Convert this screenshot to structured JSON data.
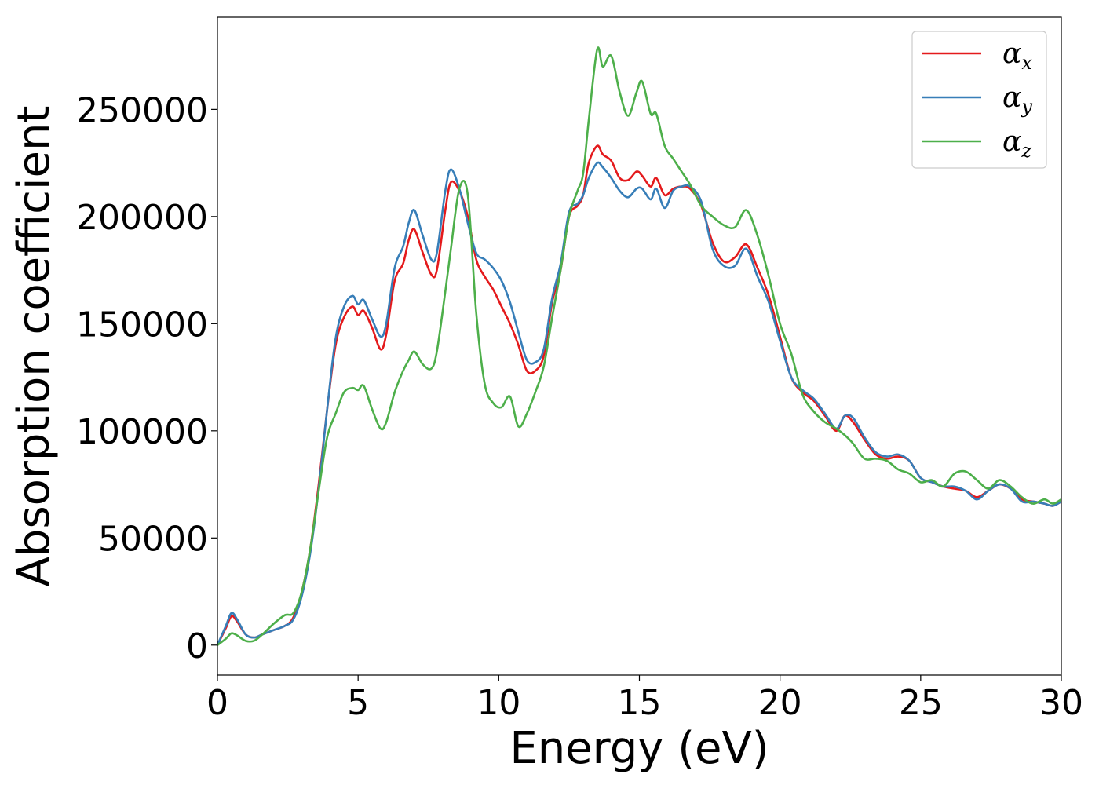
{
  "chart_data": {
    "type": "line",
    "title": "",
    "xlabel": "Energy (eV)",
    "ylabel": "Absorption coefficient",
    "xlim": [
      0,
      30
    ],
    "ylim": [
      -14000,
      293000
    ],
    "xticks": [
      0,
      5,
      10,
      15,
      20,
      25,
      30
    ],
    "xtick_labels": [
      "0",
      "5",
      "10",
      "15",
      "20",
      "25",
      "30"
    ],
    "yticks": [
      0,
      50000,
      100000,
      150000,
      200000,
      250000
    ],
    "ytick_labels": [
      "0",
      "50000",
      "100000",
      "150000",
      "200000",
      "250000"
    ],
    "grid": false,
    "legend_position": "top-right",
    "series": [
      {
        "name": "α_x",
        "label_base": "α",
        "label_sub": "x",
        "color": "#e41a1c",
        "x": [
          0,
          0.3,
          0.5,
          0.7,
          1.0,
          1.3,
          1.6,
          2.0,
          2.4,
          2.7,
          3.0,
          3.3,
          3.6,
          3.9,
          4.2,
          4.5,
          4.8,
          5.0,
          5.2,
          5.5,
          5.8,
          6.0,
          6.3,
          6.6,
          6.8,
          7.0,
          7.3,
          7.6,
          7.8,
          8.1,
          8.3,
          8.6,
          8.9,
          9.2,
          9.5,
          9.8,
          10.1,
          10.4,
          10.7,
          11.0,
          11.3,
          11.6,
          11.9,
          12.2,
          12.5,
          12.8,
          13.0,
          13.2,
          13.5,
          13.7,
          14.0,
          14.3,
          14.6,
          14.9,
          15.1,
          15.4,
          15.6,
          15.9,
          16.2,
          16.5,
          16.8,
          17.2,
          17.6,
          18.0,
          18.4,
          18.8,
          19.2,
          19.6,
          20.0,
          20.4,
          20.8,
          21.2,
          21.6,
          22.0,
          22.3,
          22.6,
          23.0,
          23.4,
          23.8,
          24.2,
          24.6,
          25.0,
          25.4,
          25.8,
          26.2,
          26.6,
          27.0,
          27.4,
          27.8,
          28.2,
          28.6,
          29.0,
          29.4,
          29.7,
          30.0
        ],
        "values": [
          0,
          8000,
          13500,
          11000,
          5000,
          3500,
          5000,
          7000,
          9000,
          13000,
          25000,
          45000,
          75000,
          110000,
          140000,
          153000,
          158000,
          154000,
          156000,
          148000,
          138000,
          145000,
          170000,
          178000,
          189000,
          194000,
          183000,
          173000,
          175000,
          203000,
          216000,
          212000,
          200000,
          180000,
          172000,
          166000,
          158000,
          150000,
          140000,
          128000,
          128000,
          135000,
          160000,
          175000,
          200000,
          205000,
          210000,
          225000,
          233000,
          229000,
          226000,
          218000,
          217000,
          221000,
          219000,
          214000,
          218000,
          210000,
          213000,
          214000,
          213000,
          205000,
          188000,
          179000,
          181000,
          187000,
          176000,
          163000,
          144000,
          125000,
          118000,
          114000,
          107000,
          100000,
          107000,
          104000,
          96000,
          89000,
          87000,
          88000,
          86000,
          78000,
          76000,
          74000,
          73000,
          72000,
          69000,
          72000,
          75000,
          73000,
          68000,
          67000,
          66000,
          65000,
          67000
        ]
      },
      {
        "name": "α_y",
        "label_base": "α",
        "label_sub": "y",
        "color": "#377eb8",
        "x": [
          0,
          0.3,
          0.5,
          0.7,
          1.0,
          1.3,
          1.6,
          2.0,
          2.4,
          2.7,
          3.0,
          3.3,
          3.6,
          3.9,
          4.2,
          4.5,
          4.8,
          5.0,
          5.2,
          5.5,
          5.8,
          6.0,
          6.3,
          6.6,
          6.8,
          7.0,
          7.3,
          7.6,
          7.8,
          8.1,
          8.3,
          8.6,
          8.9,
          9.2,
          9.5,
          9.8,
          10.1,
          10.4,
          10.7,
          11.0,
          11.3,
          11.6,
          11.9,
          12.2,
          12.5,
          12.8,
          13.0,
          13.2,
          13.5,
          13.7,
          14.0,
          14.3,
          14.6,
          14.9,
          15.1,
          15.4,
          15.6,
          15.9,
          16.2,
          16.5,
          16.8,
          17.2,
          17.6,
          18.0,
          18.4,
          18.8,
          19.2,
          19.6,
          20.0,
          20.4,
          20.8,
          21.2,
          21.6,
          22.0,
          22.3,
          22.6,
          23.0,
          23.4,
          23.8,
          24.2,
          24.6,
          25.0,
          25.4,
          25.8,
          26.2,
          26.6,
          27.0,
          27.4,
          27.8,
          28.2,
          28.6,
          29.0,
          29.4,
          29.7,
          30.0
        ],
        "values": [
          0,
          9000,
          15000,
          12000,
          5000,
          3500,
          5000,
          7000,
          9000,
          12000,
          23000,
          43000,
          73000,
          110000,
          143000,
          158000,
          163000,
          159000,
          161000,
          152000,
          144000,
          150000,
          176000,
          186000,
          197000,
          203000,
          191000,
          180000,
          183000,
          212000,
          222000,
          213000,
          197000,
          183000,
          180000,
          176000,
          170000,
          160000,
          146000,
          133000,
          132000,
          138000,
          162000,
          178000,
          202000,
          206000,
          210000,
          218000,
          225000,
          223000,
          218000,
          212000,
          209000,
          213000,
          213000,
          208000,
          213000,
          204000,
          212000,
          214000,
          214000,
          207000,
          185000,
          177000,
          177000,
          185000,
          172000,
          160000,
          142000,
          125000,
          119000,
          115000,
          108000,
          101000,
          107000,
          106000,
          97000,
          90000,
          88000,
          89000,
          86000,
          78000,
          76000,
          74000,
          74000,
          72000,
          68000,
          72000,
          75000,
          73000,
          67000,
          67000,
          66000,
          65000,
          67000
        ]
      },
      {
        "name": "α_z",
        "label_base": "α",
        "label_sub": "z",
        "color": "#4daf4a",
        "x": [
          0,
          0.3,
          0.5,
          0.7,
          1.0,
          1.3,
          1.6,
          2.0,
          2.4,
          2.7,
          3.0,
          3.3,
          3.6,
          3.9,
          4.2,
          4.5,
          4.8,
          5.0,
          5.2,
          5.5,
          5.8,
          6.0,
          6.3,
          6.6,
          6.8,
          7.0,
          7.3,
          7.6,
          7.8,
          8.1,
          8.3,
          8.6,
          8.9,
          9.2,
          9.5,
          9.8,
          10.1,
          10.4,
          10.7,
          11.0,
          11.3,
          11.6,
          11.9,
          12.2,
          12.5,
          12.8,
          13.0,
          13.2,
          13.5,
          13.7,
          14.0,
          14.3,
          14.6,
          14.9,
          15.1,
          15.4,
          15.6,
          15.9,
          16.2,
          16.5,
          16.8,
          17.2,
          17.6,
          18.0,
          18.4,
          18.8,
          19.2,
          19.6,
          20.0,
          20.4,
          20.8,
          21.2,
          21.6,
          22.0,
          22.3,
          22.6,
          23.0,
          23.4,
          23.8,
          24.2,
          24.6,
          25.0,
          25.4,
          25.8,
          26.2,
          26.6,
          27.0,
          27.4,
          27.8,
          28.2,
          28.6,
          29.0,
          29.4,
          29.7,
          30.0
        ],
        "values": [
          0,
          3000,
          5500,
          4500,
          2000,
          2000,
          5000,
          10000,
          14000,
          15000,
          25000,
          45000,
          72000,
          97000,
          108000,
          118000,
          120000,
          119000,
          121000,
          110000,
          101000,
          104000,
          118000,
          128000,
          133000,
          137000,
          131000,
          129000,
          137000,
          165000,
          185000,
          213000,
          210000,
          155000,
          122000,
          113000,
          111000,
          116000,
          102000,
          108000,
          118000,
          130000,
          153000,
          175000,
          200000,
          212000,
          220000,
          245000,
          278000,
          270000,
          275000,
          258000,
          247000,
          258000,
          263000,
          248000,
          248000,
          233000,
          227000,
          221000,
          215000,
          205000,
          200000,
          196000,
          195000,
          203000,
          191000,
          172000,
          150000,
          136000,
          117000,
          109000,
          104000,
          101000,
          98000,
          94000,
          87000,
          87000,
          86000,
          82000,
          80000,
          76000,
          77000,
          74000,
          80000,
          81000,
          77000,
          73000,
          77000,
          74000,
          69000,
          66000,
          68000,
          66000,
          68000
        ]
      }
    ]
  }
}
